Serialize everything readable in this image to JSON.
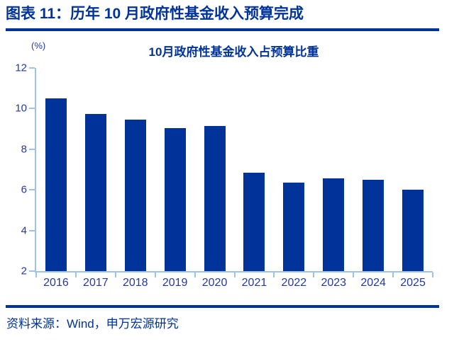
{
  "header": {
    "title": "图表 11：历年 10 月政府性基金收入预算完成"
  },
  "chart": {
    "unit_label": "(%)",
    "title": "10月政府性基金收入占预算比重"
  },
  "chart_data": {
    "type": "bar",
    "categories": [
      "2016",
      "2017",
      "2018",
      "2019",
      "2020",
      "2021",
      "2022",
      "2023",
      "2024",
      "2025"
    ],
    "values": [
      10.5,
      9.75,
      9.45,
      9.05,
      9.15,
      6.85,
      6.35,
      6.55,
      6.5,
      6.0
    ],
    "title": "10月政府性基金收入占预算比重",
    "xlabel": "",
    "ylabel": "(%)",
    "ylim": [
      2,
      12
    ],
    "yticks": [
      2,
      4,
      6,
      8,
      10,
      12
    ],
    "grid": false,
    "legend": "none",
    "bar_color": "#003399",
    "axis_color": "#9DC3E6"
  },
  "footer": {
    "source": "资料来源：Wind，申万宏源研究"
  },
  "colors": {
    "navy": "#003399",
    "axis_light_blue": "#9DC3E6",
    "tick_text": "#2439A8"
  }
}
